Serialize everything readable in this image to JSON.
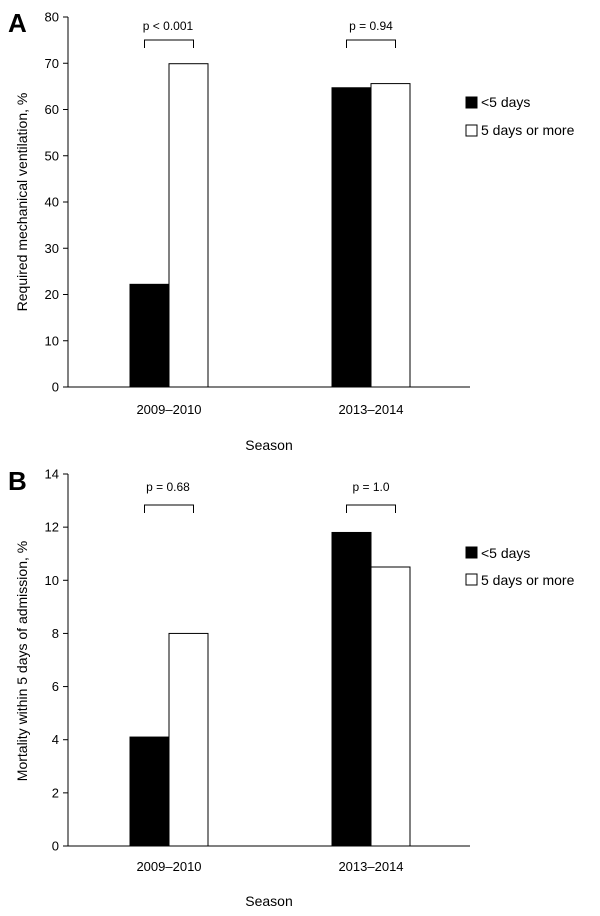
{
  "chart_data": [
    {
      "type": "bar",
      "panel_label": "A",
      "categories": [
        "2009–2010",
        "2013–2014"
      ],
      "series": [
        {
          "name": "<5 days",
          "values": [
            22.2,
            64.7
          ],
          "color": "#000000"
        },
        {
          "name": "5 days or more",
          "values": [
            69.9,
            65.6
          ],
          "color": "#ffffff"
        }
      ],
      "annotations": [
        "p < 0.001",
        "p = 0.94"
      ],
      "xlabel": "Season",
      "ylabel": "Required mechanical ventilation, %",
      "ylim": [
        0,
        80
      ],
      "yticks": [
        0,
        10,
        20,
        30,
        40,
        50,
        60,
        70,
        80
      ],
      "grid": false,
      "legend": "right"
    },
    {
      "type": "bar",
      "panel_label": "B",
      "categories": [
        "2009–2010",
        "2013–2014"
      ],
      "series": [
        {
          "name": "<5 days",
          "values": [
            4.1,
            11.8
          ],
          "color": "#000000"
        },
        {
          "name": "5 days or more",
          "values": [
            8.0,
            10.5
          ],
          "color": "#ffffff"
        }
      ],
      "annotations": [
        "p = 0.68",
        "p = 1.0"
      ],
      "xlabel": "Season",
      "ylabel": "Mortality within 5 days of admission, %",
      "ylim": [
        0,
        14
      ],
      "yticks": [
        0,
        2,
        4,
        6,
        8,
        10,
        12,
        14
      ],
      "grid": false,
      "legend": "right"
    }
  ]
}
